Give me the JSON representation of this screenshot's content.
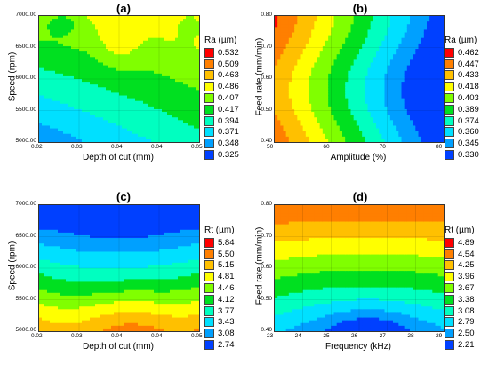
{
  "chart_data": [
    {
      "type": "heatmap",
      "label": "(a)",
      "xlabel": "Depth of cut (mm)",
      "ylabel": "Speed (rpm)",
      "xticks": [
        "0.02",
        "0.03",
        "0.04",
        "0.04",
        "0.05"
      ],
      "yticks": [
        "5000.00",
        "5500.00",
        "6000.00",
        "6500.00",
        "7000.00"
      ],
      "legend_title": "Ra (µm)",
      "levels": [
        "0.532",
        "0.509",
        "0.463",
        "0.486",
        "0.407",
        "0.417",
        "0.394",
        "0.371",
        "0.348",
        "0.325"
      ],
      "colors": [
        "#ff0000",
        "#ff7f00",
        "#ffc000",
        "#ffff00",
        "#80ff00",
        "#00e020",
        "#00ffc0",
        "#00e0ff",
        "#00a0ff",
        "#0040ff"
      ]
    },
    {
      "type": "heatmap",
      "label": "(b)",
      "xlabel": "Amplitude (%)",
      "ylabel": "Feed rate (mm/min)",
      "xticks": [
        "50",
        "60",
        "70",
        "80"
      ],
      "yticks": [
        "0.40",
        "0.50",
        "0.60",
        "0.70",
        "0.80"
      ],
      "legend_title": "Ra (µm)",
      "levels": [
        "0.462",
        "0.447",
        "0.433",
        "0.418",
        "0.403",
        "0.389",
        "0.374",
        "0.360",
        "0.345",
        "0.330"
      ],
      "colors": [
        "#ff0000",
        "#ff7f00",
        "#ffc000",
        "#ffff00",
        "#80ff00",
        "#00e020",
        "#00ffc0",
        "#00e0ff",
        "#00a0ff",
        "#0040ff"
      ]
    },
    {
      "type": "heatmap",
      "label": "(c)",
      "xlabel": "Depth of cut (mm)",
      "ylabel": "Speed (rpm)",
      "xticks": [
        "0.02",
        "0.03",
        "0.04",
        "0.04",
        "0.05"
      ],
      "yticks": [
        "5000.00",
        "5500.00",
        "6000.00",
        "6500.00",
        "7000.00"
      ],
      "legend_title": "Rt (µm)",
      "levels": [
        "5.84",
        "5.50",
        "5.15",
        "4.81",
        "4.46",
        "4.12",
        "3.77",
        "3.43",
        "3.08",
        "2.74"
      ],
      "colors": [
        "#ff0000",
        "#ff7f00",
        "#ffc000",
        "#ffff00",
        "#80ff00",
        "#00e020",
        "#00ffc0",
        "#00e0ff",
        "#00a0ff",
        "#0040ff"
      ]
    },
    {
      "type": "heatmap",
      "label": "(d)",
      "xlabel": "Frequency (kHz)",
      "ylabel": "Feed rate (mm/min)",
      "xticks": [
        "23",
        "24",
        "25",
        "26",
        "27",
        "28",
        "29"
      ],
      "yticks": [
        "0.40",
        "0.50",
        "0.60",
        "0.70",
        "0.80"
      ],
      "legend_title": "Rt (µm)",
      "levels": [
        "4.89",
        "4.54",
        "4.25",
        "3.96",
        "3.67",
        "3.38",
        "3.08",
        "2.79",
        "2.50",
        "2.21"
      ],
      "colors": [
        "#ff0000",
        "#ff7f00",
        "#ffc000",
        "#ffff00",
        "#80ff00",
        "#00e020",
        "#00ffc0",
        "#00e0ff",
        "#00a0ff",
        "#0040ff"
      ]
    }
  ]
}
